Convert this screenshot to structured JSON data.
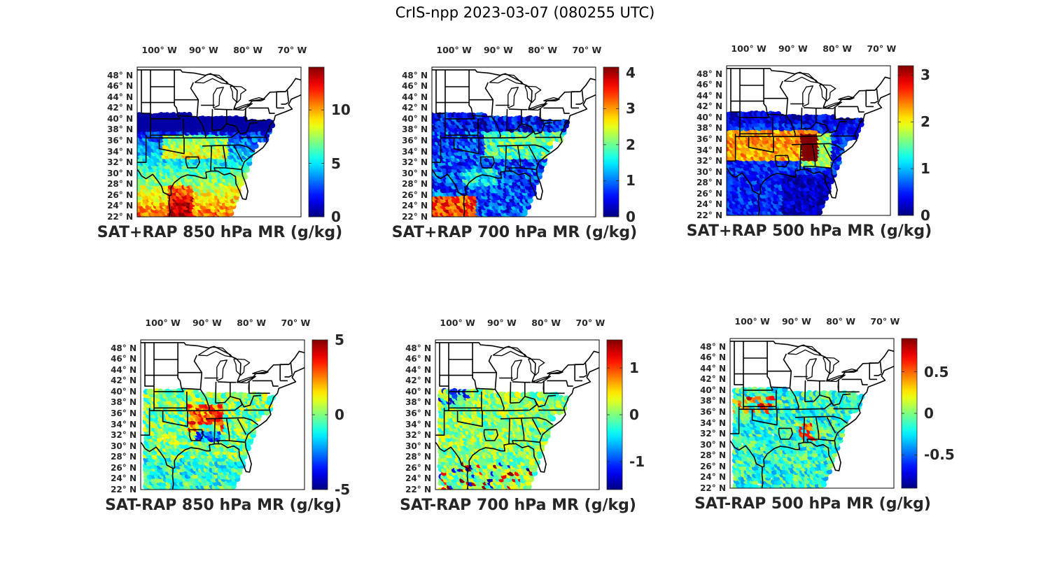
{
  "figure": {
    "title": "CrIS-npp 2023-03-07 (080255 UTC)"
  },
  "axes": {
    "lon_labels": [
      "100° W",
      "90° W",
      "80° W",
      "70° W"
    ],
    "lon_values": [
      -100,
      -90,
      -80,
      -70
    ],
    "lat_labels": [
      "48° N",
      "46° N",
      "44° N",
      "42° N",
      "40° N",
      "38° N",
      "36° N",
      "34° N",
      "32° N",
      "30° N",
      "28° N",
      "26° N",
      "24° N",
      "22° N"
    ],
    "lat_values": [
      48,
      46,
      44,
      42,
      40,
      38,
      36,
      34,
      32,
      30,
      28,
      26,
      24,
      22
    ],
    "lon_range": [
      -105,
      -68
    ],
    "lat_range": [
      22,
      49.5
    ]
  },
  "colors": {
    "map_border": "#000000",
    "colormap": "jet"
  },
  "panels": [
    {
      "title": "SAT+RAP 850 hPa MR (g/kg)",
      "cbar_ticks": [
        "0",
        "5",
        "10"
      ],
      "cbar_values": [
        0,
        5,
        10
      ],
      "cbar_range": [
        0,
        14
      ],
      "kind": "total850"
    },
    {
      "title": "SAT+RAP 700 hPa MR (g/kg)",
      "cbar_ticks": [
        "0",
        "1",
        "2",
        "3",
        "4"
      ],
      "cbar_values": [
        0,
        1,
        2,
        3,
        4
      ],
      "cbar_range": [
        0,
        4.15
      ],
      "kind": "total700"
    },
    {
      "title": "SAT+RAP 500 hPa MR (g/kg)",
      "cbar_ticks": [
        "0",
        "1",
        "2",
        "3"
      ],
      "cbar_values": [
        0,
        1,
        2,
        3
      ],
      "cbar_range": [
        0,
        3.2
      ],
      "kind": "total500"
    },
    {
      "title": "SAT-RAP 850 hPa MR (g/kg)",
      "cbar_ticks": [
        "-5",
        "0",
        "5"
      ],
      "cbar_values": [
        -5,
        0,
        5
      ],
      "cbar_range": [
        -5,
        5
      ],
      "kind": "diff850"
    },
    {
      "title": "SAT-RAP 700 hPa MR (g/kg)",
      "cbar_ticks": [
        "-1",
        "0",
        "1"
      ],
      "cbar_values": [
        -1,
        0,
        1
      ],
      "cbar_range": [
        -1.6,
        1.6
      ],
      "kind": "diff700"
    },
    {
      "title": "SAT-RAP 500 hPa MR (g/kg)",
      "cbar_ticks": [
        "-0.5",
        "0",
        "0.5"
      ],
      "cbar_values": [
        -0.5,
        0,
        0.5
      ],
      "cbar_range": [
        -0.9,
        0.9
      ],
      "kind": "diff500"
    }
  ],
  "chart_data": [
    {
      "type": "heatmap",
      "title": "SAT+RAP 850 hPa MR (g/kg)",
      "colorbar_range": [
        0,
        14
      ],
      "colorbar_ticks": [
        0,
        5,
        10
      ]
    },
    {
      "type": "heatmap",
      "title": "SAT+RAP 700 hPa MR (g/kg)",
      "colorbar_range": [
        0,
        4.15
      ],
      "colorbar_ticks": [
        0,
        1,
        2,
        3,
        4
      ]
    },
    {
      "type": "heatmap",
      "title": "SAT+RAP 500 hPa MR (g/kg)",
      "colorbar_range": [
        0,
        3.2
      ],
      "colorbar_ticks": [
        0,
        1,
        2,
        3
      ]
    },
    {
      "type": "heatmap",
      "title": "SAT-RAP 850 hPa MR (g/kg)",
      "colorbar_range": [
        -5,
        5
      ],
      "colorbar_ticks": [
        -5,
        0,
        5
      ]
    },
    {
      "type": "heatmap",
      "title": "SAT-RAP 700 hPa MR (g/kg)",
      "colorbar_range": [
        -1.6,
        1.6
      ],
      "colorbar_ticks": [
        -1,
        0,
        1
      ]
    },
    {
      "type": "heatmap",
      "title": "SAT-RAP 500 hPa MR (g/kg)",
      "colorbar_range": [
        -0.9,
        0.9
      ],
      "colorbar_ticks": [
        -0.5,
        0,
        0.5
      ]
    }
  ]
}
